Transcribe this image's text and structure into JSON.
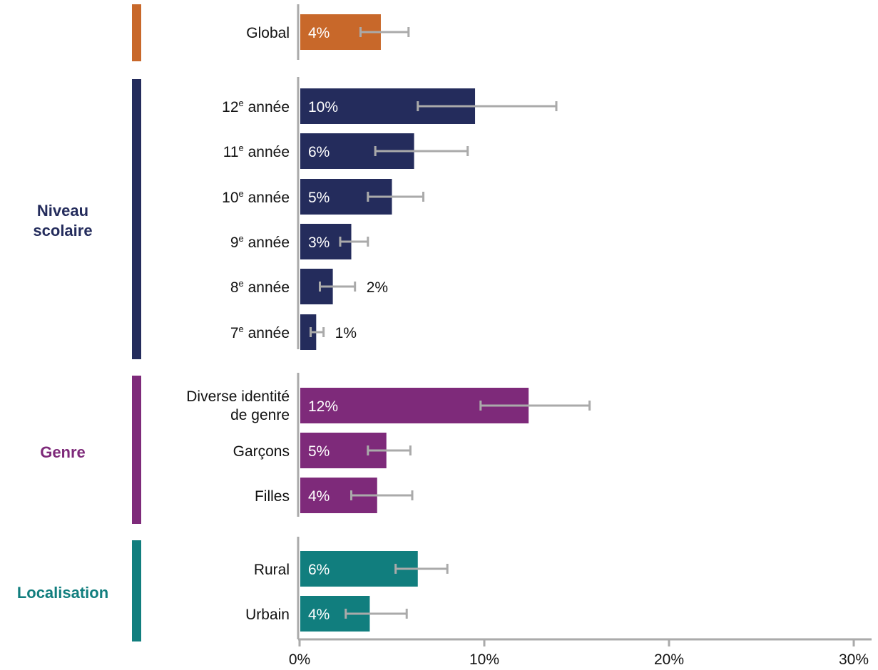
{
  "chart_data": {
    "type": "bar",
    "orientation": "horizontal",
    "xlim": [
      0,
      30
    ],
    "x_ticks": [
      0,
      10,
      20,
      30
    ],
    "x_tick_labels": [
      "0%",
      "10%",
      "20%",
      "30%"
    ],
    "groups": [
      {
        "name": "",
        "color": "#C8682A",
        "items": [
          {
            "label": "Global",
            "value": 4.4,
            "ci_low": 3.3,
            "ci_high": 5.9,
            "value_label": "4%"
          }
        ]
      },
      {
        "name": "Niveau scolaire",
        "name_lines": [
          "Niveau",
          "scolaire"
        ],
        "color": "#242C5C",
        "items": [
          {
            "label": "12e année",
            "label_main": "12",
            "label_sup": "e",
            "label_rest": " année",
            "value": 9.5,
            "ci_low": 6.4,
            "ci_high": 13.9,
            "value_label": "10%"
          },
          {
            "label": "11e année",
            "label_main": "11",
            "label_sup": "e",
            "label_rest": " année",
            "value": 6.2,
            "ci_low": 4.1,
            "ci_high": 9.1,
            "value_label": "6%"
          },
          {
            "label": "10e année",
            "label_main": "10",
            "label_sup": "e",
            "label_rest": " année",
            "value": 5.0,
            "ci_low": 3.7,
            "ci_high": 6.7,
            "value_label": "5%"
          },
          {
            "label": "9e année",
            "label_main": "9",
            "label_sup": "e",
            "label_rest": " année",
            "value": 2.8,
            "ci_low": 2.2,
            "ci_high": 3.7,
            "value_label": "3%"
          },
          {
            "label": "8e année",
            "label_main": "8",
            "label_sup": "e",
            "label_rest": " année",
            "value": 1.8,
            "ci_low": 1.1,
            "ci_high": 3.0,
            "value_label": "2%"
          },
          {
            "label": "7e année",
            "label_main": "7",
            "label_sup": "e",
            "label_rest": " année",
            "value": 0.9,
            "ci_low": 0.6,
            "ci_high": 1.3,
            "value_label": "1%"
          }
        ]
      },
      {
        "name": "Genre",
        "name_lines": [
          "Genre"
        ],
        "color": "#7E2A7A",
        "items": [
          {
            "label": "Diverse identité de genre",
            "label_lines": [
              "Diverse identité",
              "de genre"
            ],
            "value": 12.4,
            "ci_low": 9.8,
            "ci_high": 15.7,
            "value_label": "12%"
          },
          {
            "label": "Garçons",
            "value": 4.7,
            "ci_low": 3.7,
            "ci_high": 6.0,
            "value_label": "5%"
          },
          {
            "label": "Filles",
            "value": 4.2,
            "ci_low": 2.8,
            "ci_high": 6.1,
            "value_label": "4%"
          }
        ]
      },
      {
        "name": "Localisation",
        "name_lines": [
          "Localisation"
        ],
        "color": "#117E7E",
        "items": [
          {
            "label": "Rural",
            "value": 6.4,
            "ci_low": 5.2,
            "ci_high": 8.0,
            "value_label": "6%"
          },
          {
            "label": "Urbain",
            "value": 3.8,
            "ci_low": 2.5,
            "ci_high": 5.8,
            "value_label": "4%"
          }
        ]
      }
    ],
    "error_bar_color": "#AAAAAA",
    "axis_color": "#AAAAAA"
  }
}
